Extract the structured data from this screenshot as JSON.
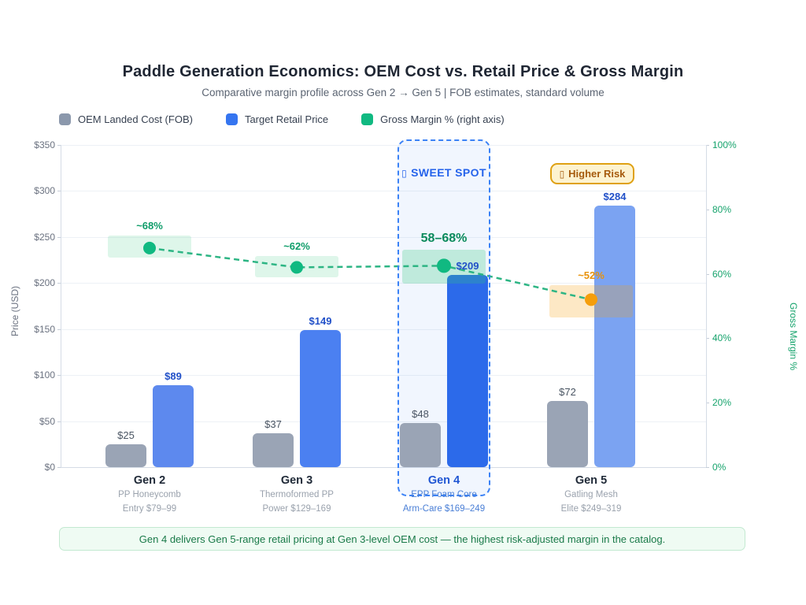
{
  "header": {
    "title": "Paddle Generation Economics: OEM Cost vs. Retail Price & Gross Margin",
    "subtitle": "Comparative margin profile across Gen 2 → Gen 5 | FOB estimates, standard volume"
  },
  "legend": {
    "items": [
      {
        "label": "OEM Landed Cost (FOB)",
        "color": "#8b98ac"
      },
      {
        "label": "Target Retail Price",
        "color": "#3575f0"
      },
      {
        "label": "Gross Margin % (right axis)",
        "color": "#10b981"
      }
    ]
  },
  "axes": {
    "left": {
      "title": "Price (USD)",
      "values": [
        350,
        300,
        250,
        200,
        150,
        100,
        50,
        0
      ],
      "labels": [
        "$350",
        "$300",
        "$250",
        "$200",
        "$150",
        "$100",
        "$50",
        "$0"
      ],
      "max": 350
    },
    "right": {
      "title": "Gross Margin %",
      "values": [
        100,
        80,
        60,
        40,
        20,
        0
      ],
      "labels": [
        "100%",
        "80%",
        "60%",
        "40%",
        "20%",
        "0%"
      ],
      "max": 100
    }
  },
  "chart_data": {
    "type": "bar",
    "title": "Paddle Generation Economics: OEM Cost vs. Retail Price & Gross Margin",
    "categories": [
      "Gen 2",
      "Gen 3",
      "Gen 4",
      "Gen 5"
    ],
    "category_sublines": [
      [
        "PP Honeycomb",
        "Entry $79–99"
      ],
      [
        "Thermoformed PP",
        "Power $129–169"
      ],
      [
        "EPP Foam Core",
        "Arm-Care $169–249"
      ],
      [
        "Gatling Mesh",
        "Elite $249–319"
      ]
    ],
    "highlight_category_index": 2,
    "ylim_left": [
      0,
      350
    ],
    "ylim_right": [
      0,
      100
    ],
    "grid": true,
    "legend_position": "top-left",
    "series": [
      {
        "name": "OEM Landed Cost (FOB)",
        "type": "bar",
        "axis": "left",
        "values": [
          25,
          37,
          48,
          72
        ],
        "value_labels": [
          "$25",
          "$37",
          "$48",
          "$72"
        ],
        "bar_color": "#9aa4b5",
        "label_color": "#4a5563"
      },
      {
        "name": "Target Retail Price",
        "type": "bar",
        "axis": "left",
        "values": [
          89,
          149,
          209,
          284
        ],
        "value_labels": [
          "$89",
          "$149",
          "$209",
          "$284"
        ],
        "bar_colors": [
          "#5d89ee",
          "#4b80f1",
          "#2c6aea",
          "#7ba3f2"
        ],
        "label_color": "#2150c8"
      },
      {
        "name": "Gross Margin % (right axis)",
        "type": "line",
        "axis": "right",
        "values": [
          68,
          62,
          62.5,
          52
        ],
        "point_labels": [
          "~68%",
          "~62%",
          "58–68%",
          "~52%"
        ],
        "point_label_colors": [
          "#0f9d6a",
          "#0f9d6a",
          "#0b8a5c",
          "#e8930c"
        ],
        "point_colors": [
          "#10b981",
          "#10b981",
          "#10b981",
          "#f59e0b"
        ],
        "line_color": "#2db584",
        "line_style": "dashed",
        "bands": [
          [
            65,
            72
          ],
          [
            59,
            65.5
          ],
          [
            57,
            67.5
          ],
          [
            46.5,
            56.5
          ]
        ],
        "band_colors": [
          "rgba(52,199,123,0.16)",
          "rgba(52,199,123,0.16)",
          "rgba(52,199,123,0.26)",
          "rgba(245,158,11,0.24)"
        ]
      }
    ]
  },
  "annotations": {
    "sweet_spot": {
      "icon": "▯",
      "label": "SWEET SPOT"
    },
    "higher_risk": {
      "icon": "▯",
      "label": "Higher Risk"
    },
    "footnote": "Gen 4 delivers Gen 5-range retail pricing at Gen 3-level OEM cost — the highest risk-adjusted margin in the catalog."
  }
}
